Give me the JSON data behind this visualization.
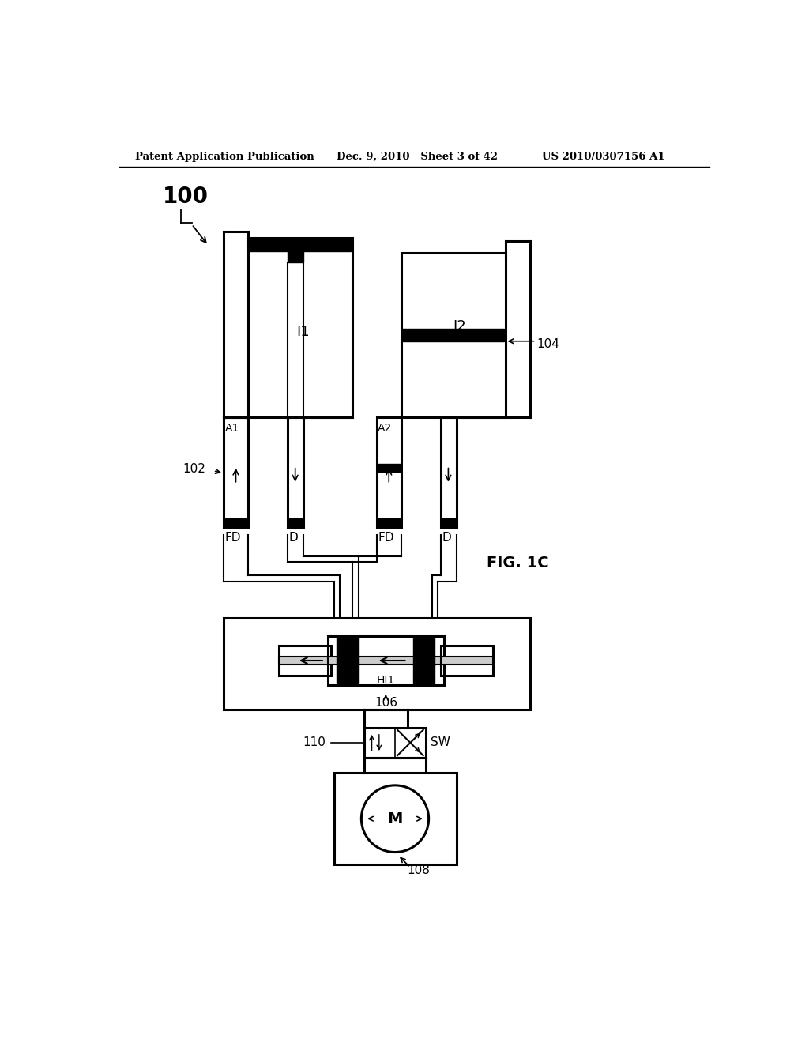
{
  "bg_color": "#ffffff",
  "header_left": "Patent Application Publication",
  "header_mid": "Dec. 9, 2010   Sheet 3 of 42",
  "header_right": "US 2010/0307156 A1",
  "fig_label": "FIG. 1C",
  "ref_100": "100",
  "ref_102": "102",
  "ref_104": "104",
  "ref_106": "106",
  "ref_108": "108",
  "ref_110": "110",
  "lw_main": 2.2,
  "lw_thin": 1.5,
  "lw_thick": 4.0
}
